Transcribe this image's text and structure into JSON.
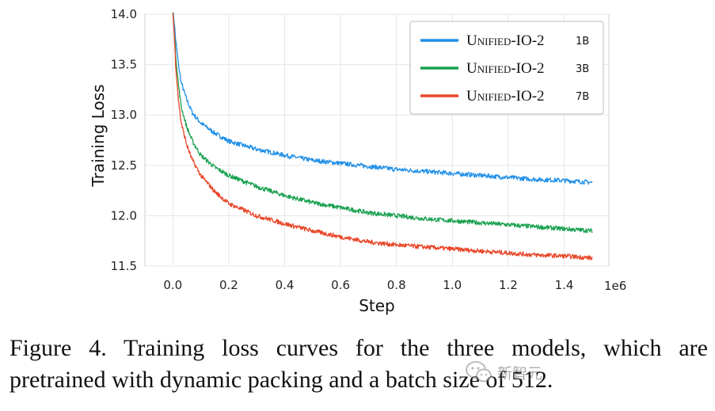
{
  "chart_data": {
    "type": "line",
    "xlabel": "Step",
    "ylabel": "Training Loss",
    "x_offset_label": "1e6",
    "xlim": [
      -0.1,
      1.56
    ],
    "ylim": [
      11.5,
      14.0
    ],
    "x_ticks": [
      "0.0",
      "0.2",
      "0.4",
      "0.6",
      "0.8",
      "1.0",
      "1.2",
      "1.4"
    ],
    "y_ticks": [
      "11.5",
      "12.0",
      "12.5",
      "13.0",
      "13.5",
      "14.0"
    ],
    "grid": true,
    "legend_position": "top-right",
    "series": [
      {
        "name": "Unified-IO-2",
        "size": "1B",
        "color": "#1f8fe8",
        "x": [
          0.0,
          0.005,
          0.01,
          0.02,
          0.03,
          0.05,
          0.07,
          0.1,
          0.15,
          0.2,
          0.3,
          0.4,
          0.5,
          0.6,
          0.7,
          0.8,
          0.9,
          1.0,
          1.1,
          1.2,
          1.3,
          1.4,
          1.5
        ],
        "y": [
          14.05,
          13.92,
          13.75,
          13.5,
          13.32,
          13.15,
          13.02,
          12.92,
          12.82,
          12.74,
          12.66,
          12.6,
          12.55,
          12.52,
          12.49,
          12.46,
          12.44,
          12.42,
          12.4,
          12.38,
          12.36,
          12.35,
          12.33
        ]
      },
      {
        "name": "Unified-IO-2",
        "size": "3B",
        "color": "#1aa150",
        "x": [
          0.0,
          0.005,
          0.01,
          0.02,
          0.03,
          0.05,
          0.07,
          0.1,
          0.15,
          0.2,
          0.3,
          0.4,
          0.5,
          0.6,
          0.7,
          0.8,
          0.9,
          1.0,
          1.1,
          1.2,
          1.3,
          1.4,
          1.5
        ],
        "y": [
          14.05,
          13.85,
          13.6,
          13.3,
          13.08,
          12.88,
          12.74,
          12.6,
          12.48,
          12.4,
          12.29,
          12.2,
          12.13,
          12.08,
          12.03,
          12.0,
          11.97,
          11.95,
          11.93,
          11.91,
          11.89,
          11.87,
          11.85
        ]
      },
      {
        "name": "Unified-IO-2",
        "size": "7B",
        "color": "#e8472a",
        "x": [
          0.0,
          0.005,
          0.01,
          0.02,
          0.03,
          0.05,
          0.07,
          0.1,
          0.15,
          0.2,
          0.3,
          0.4,
          0.5,
          0.6,
          0.7,
          0.8,
          0.9,
          1.0,
          1.1,
          1.2,
          1.3,
          1.4,
          1.5
        ],
        "y": [
          14.05,
          13.8,
          13.5,
          13.15,
          12.92,
          12.7,
          12.55,
          12.4,
          12.24,
          12.12,
          12.0,
          11.92,
          11.85,
          11.79,
          11.74,
          11.71,
          11.69,
          11.67,
          11.65,
          11.63,
          11.61,
          11.6,
          11.58
        ]
      }
    ]
  },
  "caption": {
    "line1": "Figure 4.  Training loss curves for the three models, which are",
    "line2": "pretrained with dynamic packing and a batch size of 512."
  },
  "watermark": {
    "text": "新智元",
    "icon": "wechat-icon"
  }
}
